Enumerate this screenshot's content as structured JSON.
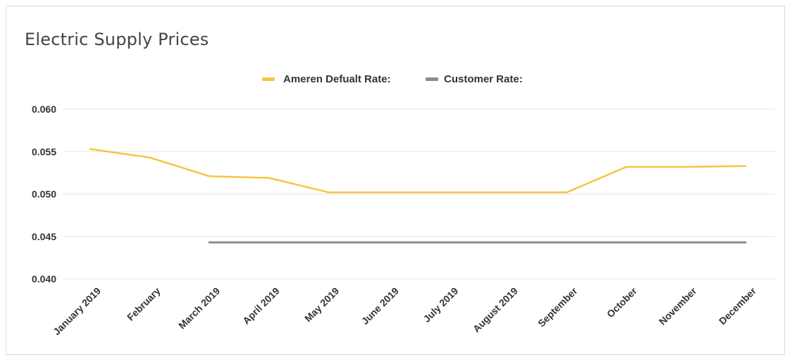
{
  "chart_data": {
    "type": "line",
    "title": "Electric Supply Prices",
    "xlabel": "",
    "ylabel": "",
    "categories": [
      "January 2019",
      "February",
      "March 2019",
      "April 2019",
      "May 2019",
      "June 2019",
      "July 2019",
      "August 2019",
      "September",
      "October",
      "November",
      "December"
    ],
    "series": [
      {
        "name": "Ameren Defualt Rate:",
        "color": "#f5c542",
        "values": [
          0.0553,
          0.0543,
          0.0521,
          0.0519,
          0.0502,
          0.0502,
          0.0502,
          0.0502,
          0.0502,
          0.0532,
          0.0532,
          0.0533
        ]
      },
      {
        "name": "Customer Rate:",
        "color": "#8c8c8c",
        "values": [
          null,
          null,
          0.0443,
          0.0443,
          0.0443,
          0.0443,
          0.0443,
          0.0443,
          0.0443,
          0.0443,
          0.0443,
          0.0443
        ]
      }
    ],
    "ylim": [
      0.04,
      0.06
    ],
    "yticks": [
      "0.040",
      "0.045",
      "0.050",
      "0.055",
      "0.060"
    ],
    "grid": true,
    "legend_position": "top-center"
  }
}
